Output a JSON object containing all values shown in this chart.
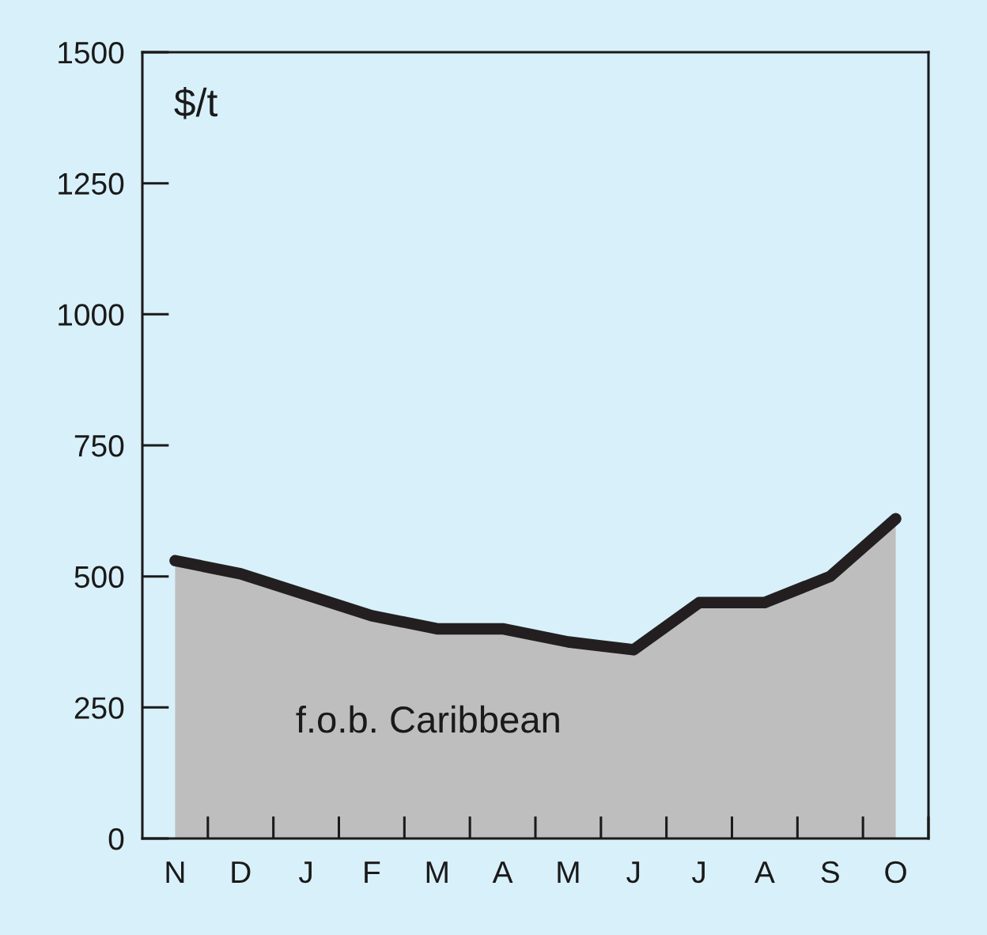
{
  "chart_data": {
    "type": "area",
    "ylabel": "$/t",
    "categories": [
      "N",
      "D",
      "J",
      "F",
      "M",
      "A",
      "M",
      "J",
      "J",
      "A",
      "S",
      "O"
    ],
    "series": [
      {
        "name": "f.o.b. Caribbean",
        "color": "#bebebe",
        "values": [
          530,
          505,
          465,
          425,
          400,
          400,
          375,
          360,
          450,
          450,
          500,
          610
        ]
      }
    ],
    "ylim": [
      0,
      1500
    ],
    "yticks": [
      0,
      250,
      500,
      750,
      1000,
      1250,
      1500
    ],
    "line_style": "solid"
  }
}
